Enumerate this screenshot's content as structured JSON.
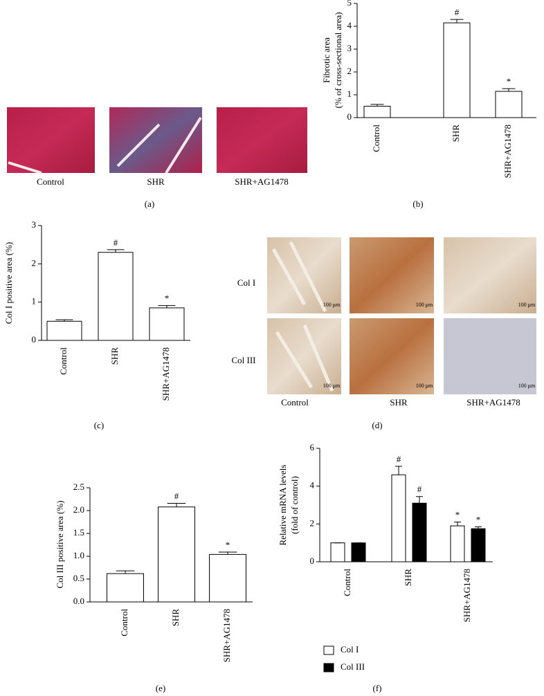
{
  "panel_a": {
    "label": "(a)",
    "captions": [
      "Control",
      "SHR",
      "SHR+AG1478"
    ]
  },
  "panel_d": {
    "label": "(d)",
    "rows": [
      "Col I",
      "Col III"
    ],
    "captions": [
      "Control",
      "SHR",
      "SHR+AG1478"
    ],
    "scale_bar": "100 μm"
  },
  "chart_data": [
    {
      "type": "bar",
      "label": "(b)",
      "ylabel": [
        "Fibrotic area",
        "(% of cross-sectional area)"
      ],
      "categories": [
        "Control",
        "SHR",
        "SHR+AG1478"
      ],
      "values": [
        0.5,
        4.15,
        1.15
      ],
      "errors": [
        0.08,
        0.15,
        0.12
      ],
      "markers": [
        null,
        "#",
        "*"
      ],
      "color": "#ffffff",
      "ylim": [
        0,
        5
      ],
      "yticks": [
        0,
        1,
        2,
        3,
        4,
        5
      ]
    },
    {
      "type": "bar",
      "label": "(c)",
      "ylabel": [
        "Col I positive area (%)"
      ],
      "categories": [
        "Control",
        "SHR",
        "SHR+AG1478"
      ],
      "values": [
        0.5,
        2.3,
        0.85
      ],
      "errors": [
        0.04,
        0.07,
        0.06
      ],
      "markers": [
        null,
        "#",
        "*"
      ],
      "color": "#ffffff",
      "ylim": [
        0,
        3
      ],
      "yticks": [
        0,
        1,
        2,
        3
      ]
    },
    {
      "type": "bar",
      "label": "(e)",
      "ylabel": [
        "Col III positive area (%)"
      ],
      "categories": [
        "Control",
        "SHR",
        "SHR+AG1478"
      ],
      "values": [
        0.62,
        2.08,
        1.04
      ],
      "errors": [
        0.06,
        0.08,
        0.05
      ],
      "markers": [
        null,
        "#",
        "*"
      ],
      "color": "#ffffff",
      "ylim": [
        0,
        2.5
      ],
      "yticks": [
        {
          "value": 0,
          "label": "0.0"
        },
        0.5,
        {
          "value": 1,
          "label": "1.0"
        },
        1.5,
        {
          "value": 2,
          "label": "2.0"
        },
        2.5
      ]
    },
    {
      "type": "bar",
      "label": "(f)",
      "ylabel": [
        "Relative mRNA levels",
        "(fold of control)"
      ],
      "categories": [
        "Control",
        "SHR",
        "SHR+AG1478"
      ],
      "series": [
        {
          "name": "Col I",
          "color": "#ffffff",
          "values": [
            1,
            4.6,
            1.9
          ],
          "errors": [
            0,
            0.45,
            0.2
          ],
          "markers": [
            null,
            "#",
            "*"
          ]
        },
        {
          "name": "Col III",
          "color": "#000000",
          "values": [
            1,
            3.1,
            1.75
          ],
          "errors": [
            0,
            0.35,
            0.1
          ],
          "markers": [
            null,
            "#",
            "*"
          ]
        }
      ],
      "ylim": [
        0,
        6
      ],
      "yticks": [
        0,
        2,
        4,
        6
      ]
    }
  ]
}
